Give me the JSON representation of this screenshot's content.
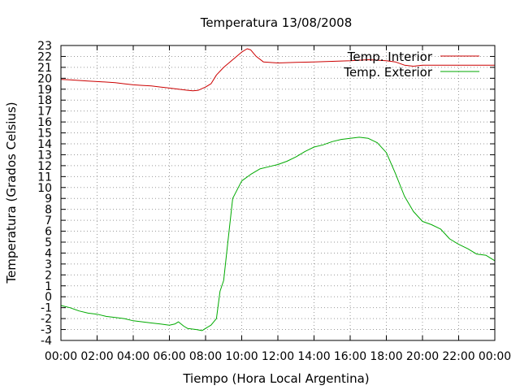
{
  "chart_data": {
    "type": "line",
    "title": "Temperatura 13/08/2008",
    "xlabel": "Tiempo (Hora Local Argentina)",
    "ylabel": "Temperatura (Grados Celsius)",
    "x_ticks": [
      "00:00",
      "02:00",
      "04:00",
      "06:00",
      "08:00",
      "10:00",
      "12:00",
      "14:00",
      "16:00",
      "18:00",
      "20:00",
      "22:00",
      "00:00"
    ],
    "xlim": [
      0,
      24
    ],
    "ylim": [
      -4,
      23
    ],
    "y_ticks": [
      -4,
      -3,
      -2,
      -1,
      0,
      1,
      2,
      3,
      4,
      5,
      6,
      7,
      8,
      9,
      10,
      11,
      12,
      13,
      14,
      15,
      16,
      17,
      18,
      19,
      20,
      21,
      22,
      23
    ],
    "grid": true,
    "legend_position": "top-right",
    "series": [
      {
        "name": "Temp. Interior",
        "color": "#cc0000",
        "x": [
          0,
          0.5,
          1,
          1.5,
          2,
          2.5,
          3,
          3.5,
          4,
          4.5,
          5,
          5.5,
          6,
          6.5,
          7,
          7.3,
          7.6,
          8,
          8.3,
          8.6,
          9,
          9.5,
          10,
          10.3,
          10.5,
          10.8,
          11.2,
          12,
          13,
          14,
          15,
          16,
          17,
          18,
          18.5,
          19,
          19.5,
          20,
          21,
          22,
          23,
          24
        ],
        "y": [
          19.9,
          19.85,
          19.8,
          19.75,
          19.7,
          19.65,
          19.6,
          19.5,
          19.4,
          19.35,
          19.3,
          19.2,
          19.1,
          19.0,
          18.9,
          18.85,
          18.9,
          19.2,
          19.5,
          20.3,
          21.0,
          21.7,
          22.4,
          22.7,
          22.6,
          22.0,
          21.5,
          21.4,
          21.45,
          21.5,
          21.55,
          21.6,
          21.7,
          21.6,
          21.5,
          21.2,
          21.1,
          21.2,
          21.2,
          21.2,
          21.2,
          21.2
        ]
      },
      {
        "name": "Temp. Exterior",
        "color": "#00aa00",
        "x": [
          0,
          0.5,
          1,
          1.5,
          2,
          2.5,
          3,
          3.5,
          4,
          4.5,
          5,
          5.5,
          6,
          6.3,
          6.5,
          6.8,
          7,
          7.5,
          7.8,
          8.0,
          8.3,
          8.6,
          8.8,
          9.0,
          9.2,
          9.5,
          10,
          10.5,
          11,
          11.5,
          12,
          12.5,
          13,
          13.5,
          14,
          14.5,
          15,
          15.5,
          16,
          16.5,
          17,
          17.5,
          18,
          18.5,
          19,
          19.5,
          20,
          20.5,
          21,
          21.5,
          22,
          22.5,
          23,
          23.5,
          24
        ],
        "y": [
          -0.8,
          -1.0,
          -1.3,
          -1.5,
          -1.6,
          -1.8,
          -1.9,
          -2.0,
          -2.2,
          -2.3,
          -2.4,
          -2.5,
          -2.6,
          -2.5,
          -2.3,
          -2.7,
          -2.9,
          -3.0,
          -3.1,
          -2.9,
          -2.6,
          -2.0,
          0.5,
          1.5,
          4.5,
          9.0,
          10.6,
          11.2,
          11.7,
          11.9,
          12.1,
          12.4,
          12.8,
          13.3,
          13.7,
          13.9,
          14.2,
          14.4,
          14.5,
          14.6,
          14.5,
          14.1,
          13.2,
          11.3,
          9.2,
          7.8,
          6.9,
          6.6,
          6.2,
          5.3,
          4.8,
          4.4,
          3.9,
          3.8,
          3.3
        ]
      }
    ]
  }
}
